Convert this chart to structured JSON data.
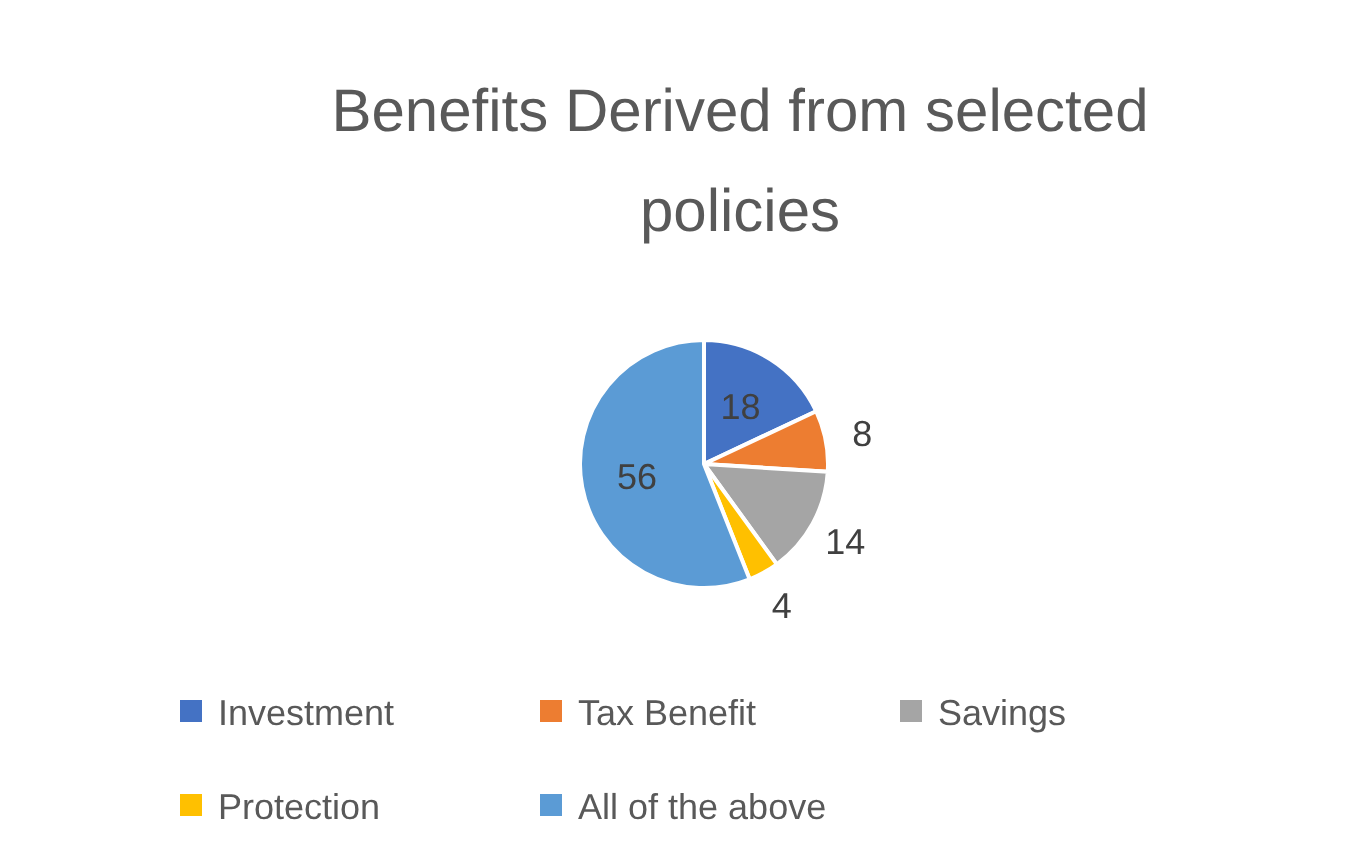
{
  "chart_data": {
    "type": "pie",
    "title": "Benefits Derived from selected policies",
    "categories": [
      "Investment",
      "Tax Benefit",
      "Savings",
      "Protection",
      "All of the above"
    ],
    "values": [
      18,
      8,
      14,
      4,
      56
    ],
    "colors": [
      "#4472c4",
      "#ed7d31",
      "#a5a5a5",
      "#ffc000",
      "#5b9bd5"
    ],
    "data_labels": true,
    "legend": "bottom"
  }
}
